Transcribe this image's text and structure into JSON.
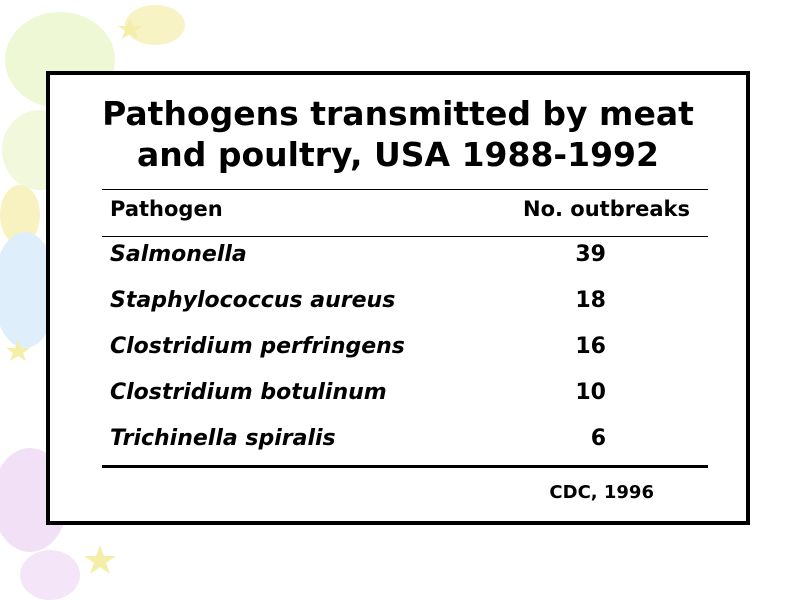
{
  "colors": {
    "border": "#000000",
    "text": "#000000",
    "background": "#ffffff",
    "decor_green": "#e8f5c8",
    "decor_blue": "#d8ecfa",
    "decor_purple": "#efdcf5",
    "decor_yellow": "#f7f0b0"
  },
  "slide": {
    "title_line1": "Pathogens transmitted by meat",
    "title_line2": "and poultry, USA 1988-1992",
    "headers": {
      "pathogen": "Pathogen",
      "outbreaks": "No. outbreaks"
    },
    "rows": [
      {
        "pathogen": "Salmonella",
        "outbreaks": "39"
      },
      {
        "pathogen": "Staphylococcus aureus",
        "outbreaks": "18"
      },
      {
        "pathogen": "Clostridium perfringens",
        "outbreaks": "16"
      },
      {
        "pathogen": "Clostridium botulinum",
        "outbreaks": "10"
      },
      {
        "pathogen": "Trichinella spiralis",
        "outbreaks": "6"
      }
    ],
    "source": "CDC, 1996"
  }
}
